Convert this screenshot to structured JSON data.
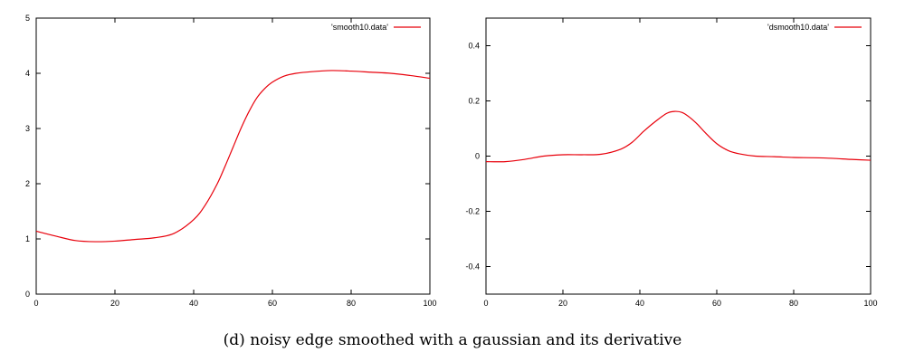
{
  "caption": "(d) noisy edge smoothed with a gaussian and its derivative",
  "colors": {
    "series": "#e8000b",
    "axis": "#000000"
  },
  "chart_data": [
    {
      "type": "line",
      "title": "",
      "xlabel": "",
      "ylabel": "",
      "xlim": [
        0,
        100
      ],
      "ylim": [
        0,
        5
      ],
      "xticks": [
        0,
        20,
        40,
        60,
        80,
        100
      ],
      "yticks": [
        0,
        1,
        2,
        3,
        4,
        5
      ],
      "ytick_labels": [
        "0",
        "1",
        "2",
        "3",
        "4",
        "5"
      ],
      "legend": "top-right",
      "grid": false,
      "series": [
        {
          "name": "'smooth10.data'",
          "x": [
            0,
            5,
            10,
            15,
            20,
            25,
            30,
            35,
            40,
            43,
            46,
            48,
            50,
            52,
            54,
            56,
            58,
            60,
            63,
            66,
            70,
            75,
            80,
            85,
            90,
            95,
            100
          ],
          "y": [
            1.14,
            1.05,
            0.97,
            0.95,
            0.96,
            0.99,
            1.02,
            1.1,
            1.35,
            1.62,
            2.0,
            2.32,
            2.66,
            3.0,
            3.3,
            3.55,
            3.72,
            3.84,
            3.95,
            4.0,
            4.03,
            4.05,
            4.04,
            4.02,
            4.0,
            3.96,
            3.91
          ]
        }
      ]
    },
    {
      "type": "line",
      "title": "",
      "xlabel": "",
      "ylabel": "",
      "xlim": [
        0,
        100
      ],
      "ylim": [
        -0.5,
        0.5
      ],
      "xticks": [
        0,
        20,
        40,
        60,
        80,
        100
      ],
      "yticks": [
        -0.4,
        -0.2,
        0,
        0.2,
        0.4
      ],
      "ytick_labels": [
        "-0.4",
        "-0.2",
        "0",
        "0.2",
        "0.4"
      ],
      "legend": "top-right",
      "grid": false,
      "series": [
        {
          "name": "'dsmooth10.data'",
          "x": [
            0,
            5,
            10,
            15,
            20,
            25,
            30,
            35,
            38,
            41,
            44,
            47,
            49,
            51,
            53,
            55,
            57,
            60,
            63,
            66,
            70,
            75,
            80,
            85,
            90,
            95,
            100
          ],
          "y": [
            -0.02,
            -0.02,
            -0.012,
            0.0,
            0.005,
            0.005,
            0.007,
            0.025,
            0.05,
            0.09,
            0.125,
            0.155,
            0.162,
            0.158,
            0.14,
            0.115,
            0.085,
            0.045,
            0.02,
            0.008,
            0.0,
            -0.002,
            -0.005,
            -0.006,
            -0.008,
            -0.012,
            -0.015
          ]
        }
      ]
    }
  ]
}
